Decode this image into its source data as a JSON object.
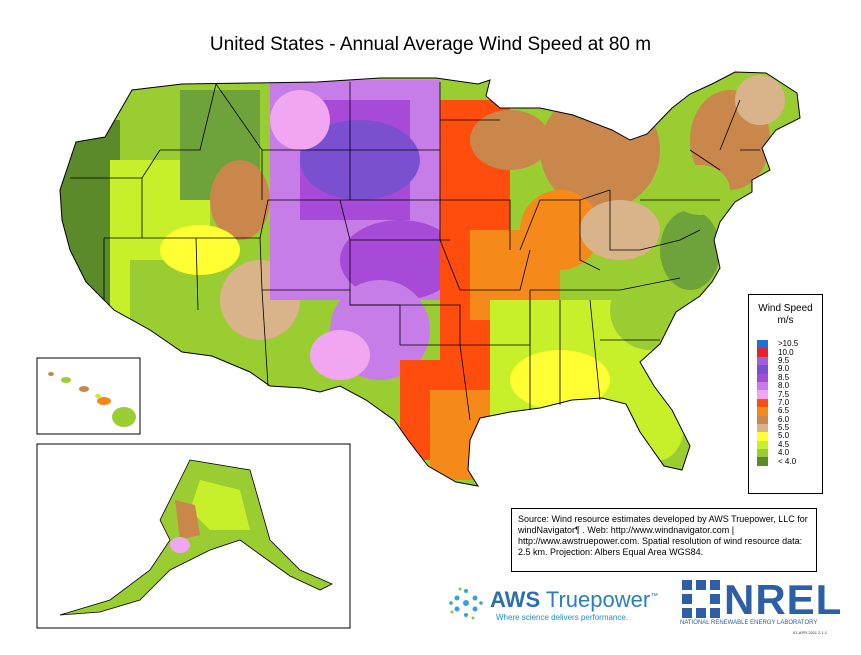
{
  "title": "United States - Annual Average Wind Speed at 80 m",
  "legend": {
    "title_line1": "Wind Speed",
    "title_line2": "m/s",
    "entries": [
      {
        "label": ">10.5",
        "color": "#1f6fd6"
      },
      {
        "label": "10.0",
        "color": "#e8222b"
      },
      {
        "label": "9.5",
        "color": "#9e5fe0"
      },
      {
        "label": "9.0",
        "color": "#7a4fd0"
      },
      {
        "label": "8.5",
        "color": "#a84ad8"
      },
      {
        "label": "8.0",
        "color": "#c77de8"
      },
      {
        "label": "7.5",
        "color": "#f0a6f0"
      },
      {
        "label": "7.0",
        "color": "#ff4d0d"
      },
      {
        "label": "6.5",
        "color": "#f58a1a"
      },
      {
        "label": "6.0",
        "color": "#c9874b"
      },
      {
        "label": "5.5",
        "color": "#d9b48a"
      },
      {
        "label": "5.0",
        "color": "#ffff33"
      },
      {
        "label": "4.5",
        "color": "#c8f02a"
      },
      {
        "label": "4.0",
        "color": "#9acd32"
      },
      {
        "label": "< 4.0",
        "color": "#5a8a2a"
      }
    ]
  },
  "source_text": "Source: Wind resource estimates developed by AWS Truepower, LLC for windNavigator¶ . Web: http://www.windnavigator.com | http://www.awstruepower.com. Spatial resolution of wind resource data: 2.5 km. Projection: Albers Equal Area WGS84.",
  "aws_logo": {
    "name_bold": "AWS",
    "name": "Truepower",
    "tm": "™",
    "tagline": "Where science delivers performance."
  },
  "nrel_logo": {
    "name": "NREL",
    "subtitle": "NATIONAL RENEWABLE ENERGY LABORATORY"
  },
  "footnote": "01-APR-2011 2.1.1",
  "colors": {
    "state_border": "#000000",
    "inset_border": "#000000",
    "background": "#ffffff"
  }
}
